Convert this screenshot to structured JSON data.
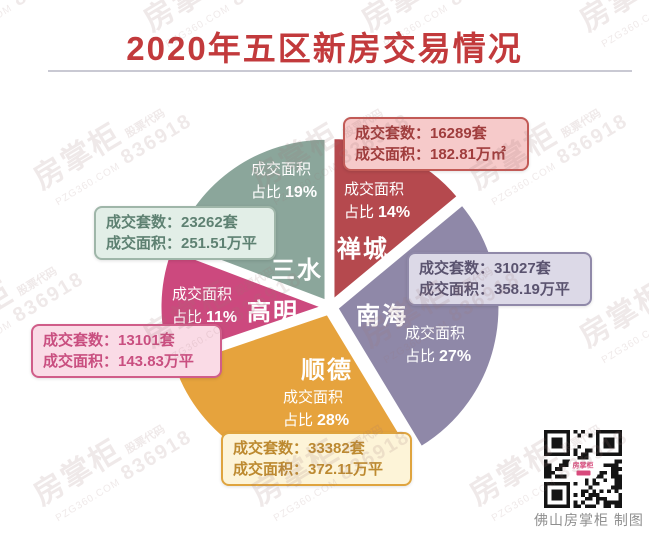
{
  "title": "2020年五区新房交易情况",
  "chart_data": {
    "type": "pie",
    "title": "2020年五区新房交易情况",
    "categories": [
      "禅城",
      "南海",
      "顺德",
      "高明",
      "三水"
    ],
    "series": [
      {
        "name": "成交套数(套)",
        "values": [
          16289,
          31027,
          33382,
          13101,
          23262
        ]
      },
      {
        "name": "成交面积(万平)",
        "values": [
          182.81,
          358.19,
          372.11,
          143.83,
          251.51
        ]
      }
    ],
    "share_of_area_labels": [
      "14%",
      "27%",
      "28%",
      "11%",
      "19%"
    ],
    "colors": [
      "#b5494e",
      "#8f88a8",
      "#e6a33d",
      "#cc497e",
      "#8ba69b"
    ],
    "legend": "none",
    "start_angle_deg": 0,
    "order": "clockwise",
    "exploded": true
  },
  "districts": [
    {
      "id": "chancheng",
      "name": "禅城",
      "share_prefix": "成交面积",
      "share_label": "占比",
      "share_pct": "14%",
      "units_line": "成交套数：16289套",
      "area_line": "成交面积：182.81万㎡",
      "color": "#b5494e",
      "box_bg": "#f6caca",
      "box_border": "#c25a56",
      "box_text": "#a03d3d"
    },
    {
      "id": "nanhai",
      "name": "南海",
      "share_prefix": "成交面积",
      "share_label": "占比",
      "share_pct": "27%",
      "units_line": "成交套数：31027套",
      "area_line": "成交面积：358.19万平",
      "color": "#8f88a8",
      "box_bg": "#dcd9e7",
      "box_border": "#9089a9",
      "box_text": "#5a536f"
    },
    {
      "id": "shunde",
      "name": "顺德",
      "share_prefix": "成交面积",
      "share_label": "占比",
      "share_pct": "28%",
      "units_line": "成交套数：33382套",
      "area_line": "成交面积：372.11万平",
      "color": "#e6a33d",
      "box_bg": "#fdf4d8",
      "box_border": "#dfa43e",
      "box_text": "#bd8a30"
    },
    {
      "id": "gaoming",
      "name": "高明",
      "share_prefix": "成交面积",
      "share_label": "占比",
      "share_pct": "11%",
      "units_line": "成交套数：13101套",
      "area_line": "成交面积：143.83万平",
      "color": "#cc497e",
      "box_bg": "#fadbe6",
      "box_border": "#d05d89",
      "box_text": "#c94f80"
    },
    {
      "id": "sanshui",
      "name": "三水",
      "share_prefix": "成交面积",
      "share_label": "占比",
      "share_pct": "19%",
      "units_line": "成交套数：23262套",
      "area_line": "成交面积：251.51万平",
      "color": "#8ba69b",
      "box_bg": "#e2eee7",
      "box_border": "#9fb6a9",
      "box_text": "#5e8172"
    }
  ],
  "watermark": {
    "brand": "房掌柜",
    "code_label": "股票代码",
    "url": "PZG360.COM",
    "number": "836918"
  },
  "footer": {
    "credit": "佛山房掌柜 制图"
  },
  "accent_color": "#c23a3c"
}
